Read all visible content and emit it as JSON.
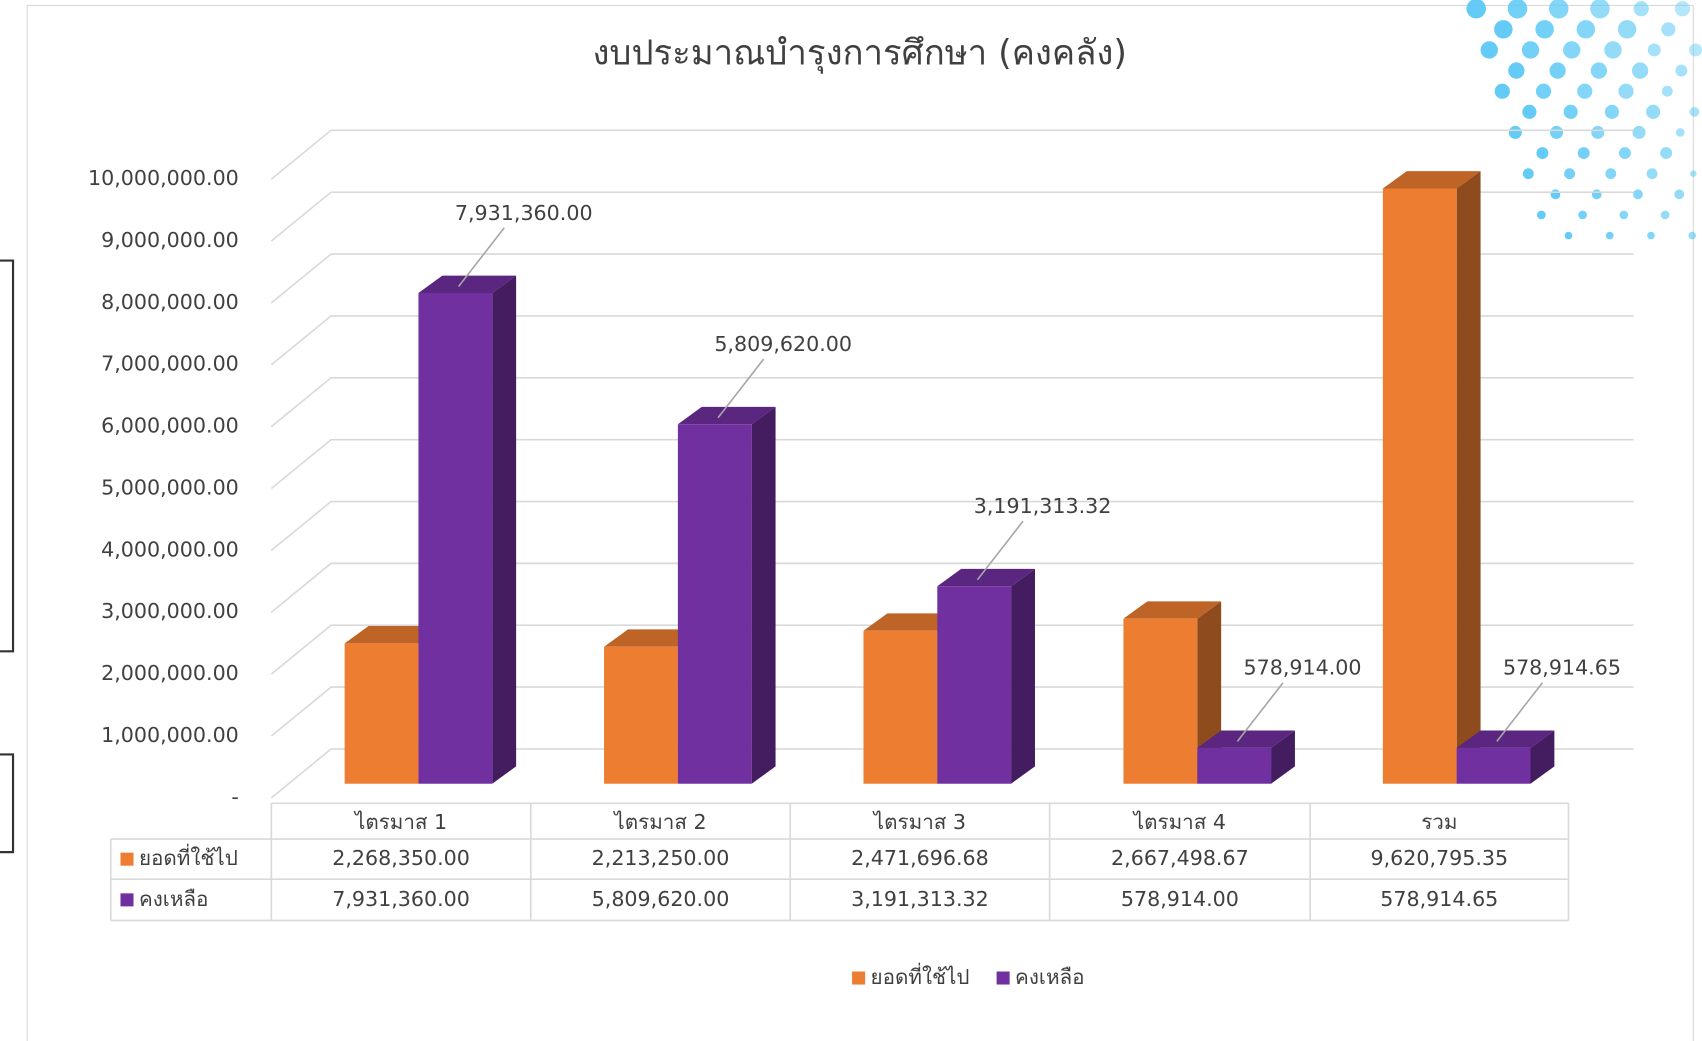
{
  "chart_data": {
    "type": "bar3d",
    "title": "งบประมาณบำรุงการศึกษา (คงคลัง)",
    "categories": [
      "ไตรมาส 1",
      "ไตรมาส 2",
      "ไตรมาส 3",
      "ไตรมาส 4",
      "รวม"
    ],
    "series": [
      {
        "name": "ยอดที่ใช้ไป",
        "color": "#ed7d31",
        "values": [
          2268350,
          2213250,
          2471696.68,
          2667498.67,
          9620795.35
        ],
        "value_labels": [
          "2,268,350.00",
          "2,213,250.00",
          "2,471,696.68",
          "2,667,498.67",
          "9,620,795.35"
        ]
      },
      {
        "name": "คงเหลือ",
        "color": "#7030a0",
        "values": [
          7931360,
          5809620,
          3191313.32,
          578914,
          578914.65
        ],
        "value_labels": [
          "7,931,360.00",
          "5,809,620.00",
          "3,191,313.32",
          "578,914.00",
          "578,914.65"
        ]
      }
    ],
    "ylim": [
      0,
      10000000
    ],
    "yticks": [
      {
        "value": 0,
        "label": "-"
      },
      {
        "value": 1000000,
        "label": "1,000,000.00"
      },
      {
        "value": 2000000,
        "label": "2,000,000.00"
      },
      {
        "value": 3000000,
        "label": "3,000,000.00"
      },
      {
        "value": 4000000,
        "label": "4,000,000.00"
      },
      {
        "value": 5000000,
        "label": "5,000,000.00"
      },
      {
        "value": 6000000,
        "label": "6,000,000.00"
      },
      {
        "value": 7000000,
        "label": "7,000,000.00"
      },
      {
        "value": 8000000,
        "label": "8,000,000.00"
      },
      {
        "value": 9000000,
        "label": "9,000,000.00"
      },
      {
        "value": 10000000,
        "label": "10,000,000.00"
      }
    ],
    "grid": true,
    "legend": "bottom",
    "data_table": true
  }
}
